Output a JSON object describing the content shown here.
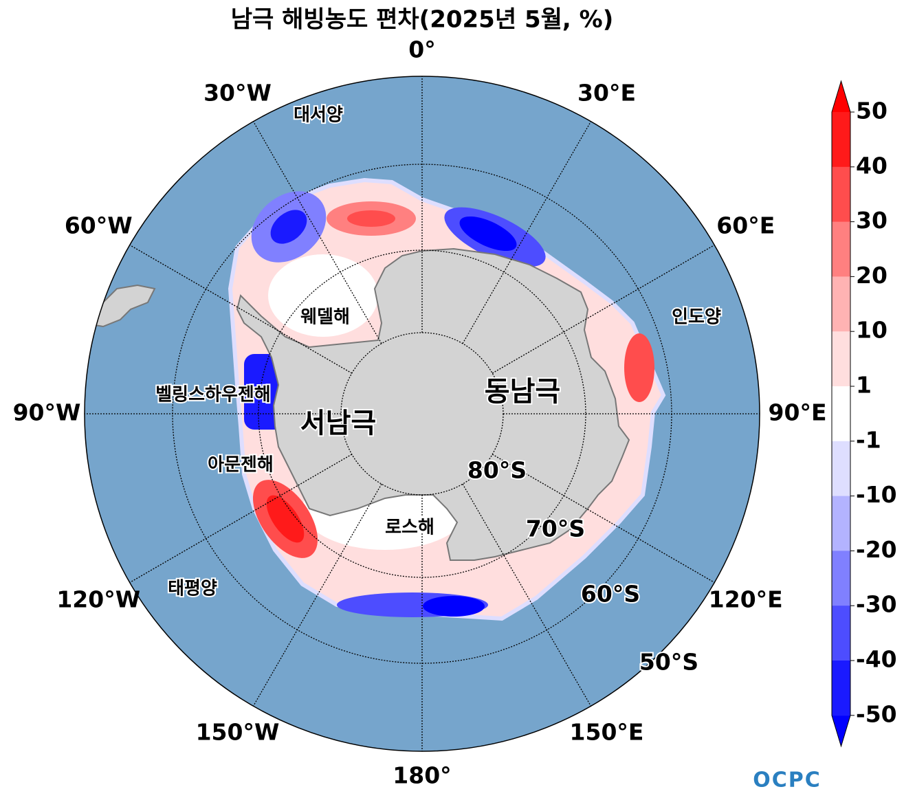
{
  "title": "남극 해빙농도 편차(2025년 5월, %)",
  "meridian_labels": [
    "0°",
    "30°E",
    "60°E",
    "90°E",
    "120°E",
    "150°E",
    "180°",
    "150°W",
    "120°W",
    "90°W",
    "60°W",
    "30°W"
  ],
  "latitude_labels": [
    "80°S",
    "70°S",
    "60°S",
    "50°S"
  ],
  "regions": {
    "atlantic": "대서양",
    "indian": "인도양",
    "pacific": "태평양",
    "weddell": "웨델해",
    "bellingshausen": "벨링스하우젠해",
    "amundsen": "아문젠해",
    "ross": "로스해",
    "west_antarctica": "서남극",
    "east_antarctica": "동남극"
  },
  "colorbar": {
    "ticks": [
      50,
      40,
      30,
      20,
      10,
      1,
      -1,
      -10,
      -20,
      -30,
      -40,
      -50
    ],
    "colors": [
      "#ff1a1a",
      "#ff4d4d",
      "#ff8080",
      "#ffb3b3",
      "#ffdede",
      "#ffffff",
      "#dedeff",
      "#b3b3ff",
      "#8080ff",
      "#4d4dff",
      "#1a1aff"
    ],
    "extend_colors": [
      "#ff0000",
      "#0000ff"
    ]
  },
  "logo": "OCPC"
}
